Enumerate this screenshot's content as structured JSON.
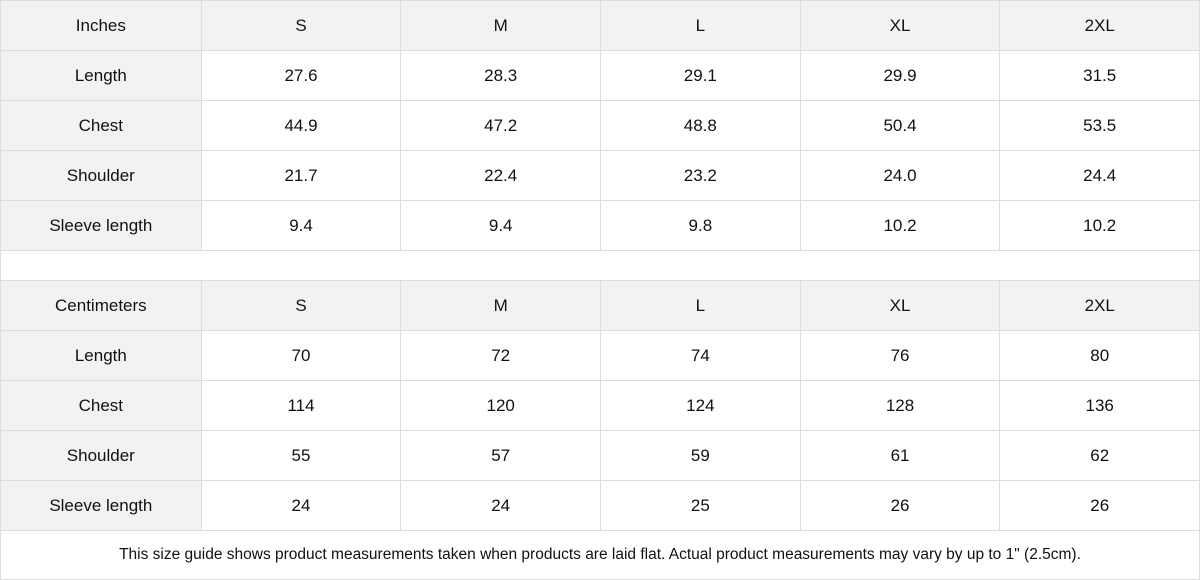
{
  "tables": [
    {
      "unit": "Inches",
      "sizes": [
        "S",
        "M",
        "L",
        "XL",
        "2XL"
      ],
      "rows": [
        {
          "label": "Length",
          "values": [
            "27.6",
            "28.3",
            "29.1",
            "29.9",
            "31.5"
          ]
        },
        {
          "label": "Chest",
          "values": [
            "44.9",
            "47.2",
            "48.8",
            "50.4",
            "53.5"
          ]
        },
        {
          "label": "Shoulder",
          "values": [
            "21.7",
            "22.4",
            "23.2",
            "24.0",
            "24.4"
          ]
        },
        {
          "label": "Sleeve length",
          "values": [
            "9.4",
            "9.4",
            "9.8",
            "10.2",
            "10.2"
          ]
        }
      ]
    },
    {
      "unit": "Centimeters",
      "sizes": [
        "S",
        "M",
        "L",
        "XL",
        "2XL"
      ],
      "rows": [
        {
          "label": "Length",
          "values": [
            "70",
            "72",
            "74",
            "76",
            "80"
          ]
        },
        {
          "label": "Chest",
          "values": [
            "114",
            "120",
            "124",
            "128",
            "136"
          ]
        },
        {
          "label": "Shoulder",
          "values": [
            "55",
            "57",
            "59",
            "61",
            "62"
          ]
        },
        {
          "label": "Sleeve length",
          "values": [
            "24",
            "24",
            "25",
            "26",
            "26"
          ]
        }
      ]
    }
  ],
  "note": "This size guide shows product measurements taken when products are laid flat.  Actual product measurements may vary by up to 1\" (2.5cm).",
  "colors": {
    "header_bg": "#f2f2f2",
    "border": "#dddddd"
  }
}
